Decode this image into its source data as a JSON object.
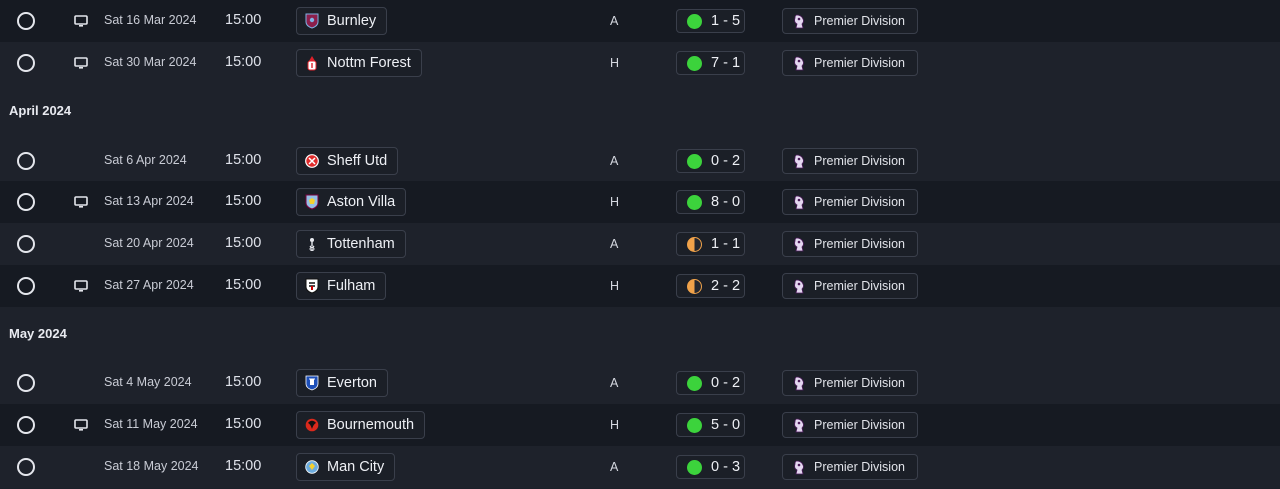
{
  "colors": {
    "win": "#3cd33c",
    "draw": "#f0a24a"
  },
  "sections": [
    {
      "month": "",
      "fixtures": [
        {
          "date": "Sat 16 Mar 2024",
          "time": "15:00",
          "tv": true,
          "team": "Burnley",
          "crest": "burnley-crest-icon",
          "venue": "A",
          "result": "win",
          "score": "1 - 5",
          "competition": "Premier Division"
        },
        {
          "date": "Sat 30 Mar 2024",
          "time": "15:00",
          "tv": true,
          "team": "Nottm Forest",
          "crest": "nottm-forest-crest-icon",
          "venue": "H",
          "result": "win",
          "score": "7 - 1",
          "competition": "Premier Division"
        }
      ]
    },
    {
      "month": "April 2024",
      "fixtures": [
        {
          "date": "Sat 6 Apr 2024",
          "time": "15:00",
          "tv": false,
          "team": "Sheff Utd",
          "crest": "sheff-utd-crest-icon",
          "venue": "A",
          "result": "win",
          "score": "0 - 2",
          "competition": "Premier Division"
        },
        {
          "date": "Sat 13 Apr 2024",
          "time": "15:00",
          "tv": true,
          "team": "Aston Villa",
          "crest": "aston-villa-crest-icon",
          "venue": "H",
          "result": "win",
          "score": "8 - 0",
          "competition": "Premier Division"
        },
        {
          "date": "Sat 20 Apr 2024",
          "time": "15:00",
          "tv": false,
          "team": "Tottenham",
          "crest": "tottenham-crest-icon",
          "venue": "A",
          "result": "draw",
          "score": "1 - 1",
          "competition": "Premier Division"
        },
        {
          "date": "Sat 27 Apr 2024",
          "time": "15:00",
          "tv": true,
          "team": "Fulham",
          "crest": "fulham-crest-icon",
          "venue": "H",
          "result": "draw",
          "score": "2 - 2",
          "competition": "Premier Division"
        }
      ]
    },
    {
      "month": "May 2024",
      "fixtures": [
        {
          "date": "Sat 4 May 2024",
          "time": "15:00",
          "tv": false,
          "team": "Everton",
          "crest": "everton-crest-icon",
          "venue": "A",
          "result": "win",
          "score": "0 - 2",
          "competition": "Premier Division"
        },
        {
          "date": "Sat 11 May 2024",
          "time": "15:00",
          "tv": true,
          "team": "Bournemouth",
          "crest": "bournemouth-crest-icon",
          "venue": "H",
          "result": "win",
          "score": "5 - 0",
          "competition": "Premier Division"
        },
        {
          "date": "Sat 18 May 2024",
          "time": "15:00",
          "tv": false,
          "team": "Man City",
          "crest": "man-city-crest-icon",
          "venue": "A",
          "result": "win",
          "score": "0 - 3",
          "competition": "Premier Division"
        }
      ]
    }
  ]
}
